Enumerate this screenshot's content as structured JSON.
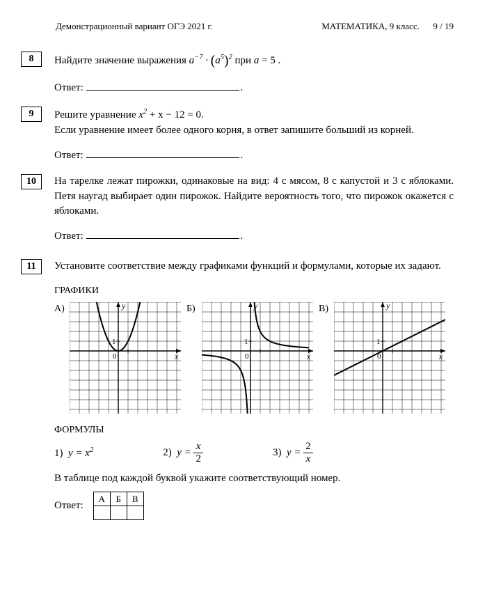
{
  "header": {
    "left": "Демонстрационный вариант ОГЭ 2021 г.",
    "subject": "МАТЕМАТИКА, 9 класс.",
    "page": "9 / 19"
  },
  "answer_label": "Ответ:",
  "p8": {
    "num": "8",
    "prefix": "Найдите значение выражения ",
    "suffix": " при ",
    "cond_var": "a",
    "cond_eq": " = 5 .",
    "expr_base1": "a",
    "expr_sup1": "−7",
    "expr_dot": " · ",
    "expr_paren_open": "(",
    "expr_base2": "a",
    "expr_sup2": "5",
    "expr_paren_close": ")",
    "expr_sup3": "2"
  },
  "p9": {
    "num": "9",
    "line1a": "Решите уравнение ",
    "eq_lhs": "x",
    "eq_sup": "2",
    "eq_rest": " + x − 12 = 0",
    "eq_period": ".",
    "line2": "Если уравнение имеет более одного корня, в ответ запишите больший из корней."
  },
  "p10": {
    "num": "10",
    "text": "На тарелке лежат пирожки, одинаковые на вид: 4 с мясом, 8 с капустой и 3 с яблоками. Петя наугад выбирает один пирожок. Найдите вероятность того, что пирожок окажется с яблоками."
  },
  "p11": {
    "num": "11",
    "text": "Установите соответствие между графиками функций и формулами, которые их задают.",
    "graphs_title": "ГРАФИКИ",
    "formulas_title": "ФОРМУЛЫ",
    "labels": {
      "a": "А)",
      "b": "Б)",
      "c": "В)"
    },
    "formulas": {
      "f1_num": "1)",
      "f1_body": "y = x",
      "f1_sup": "2",
      "f2_num": "2)",
      "f2_lhs": "y = ",
      "f2_frac_num": "x",
      "f2_frac_den": "2",
      "f3_num": "3)",
      "f3_lhs": "y = ",
      "f3_frac_num": "2",
      "f3_frac_den": "x"
    },
    "below": "В таблице под каждой буквой укажите соответствующий номер.",
    "table_headers": [
      "А",
      "Б",
      "В"
    ]
  },
  "graph_style": {
    "width": 160,
    "height": 160,
    "cell": 14,
    "stroke_grid": "#000000",
    "grid_width": 0.5,
    "stroke_axis": "#000000",
    "axis_width": 1.4,
    "curve_color": "#000000",
    "curve_width": 2,
    "origin_label": "0",
    "one_label": "1",
    "x_label": "x",
    "y_label": "y"
  }
}
